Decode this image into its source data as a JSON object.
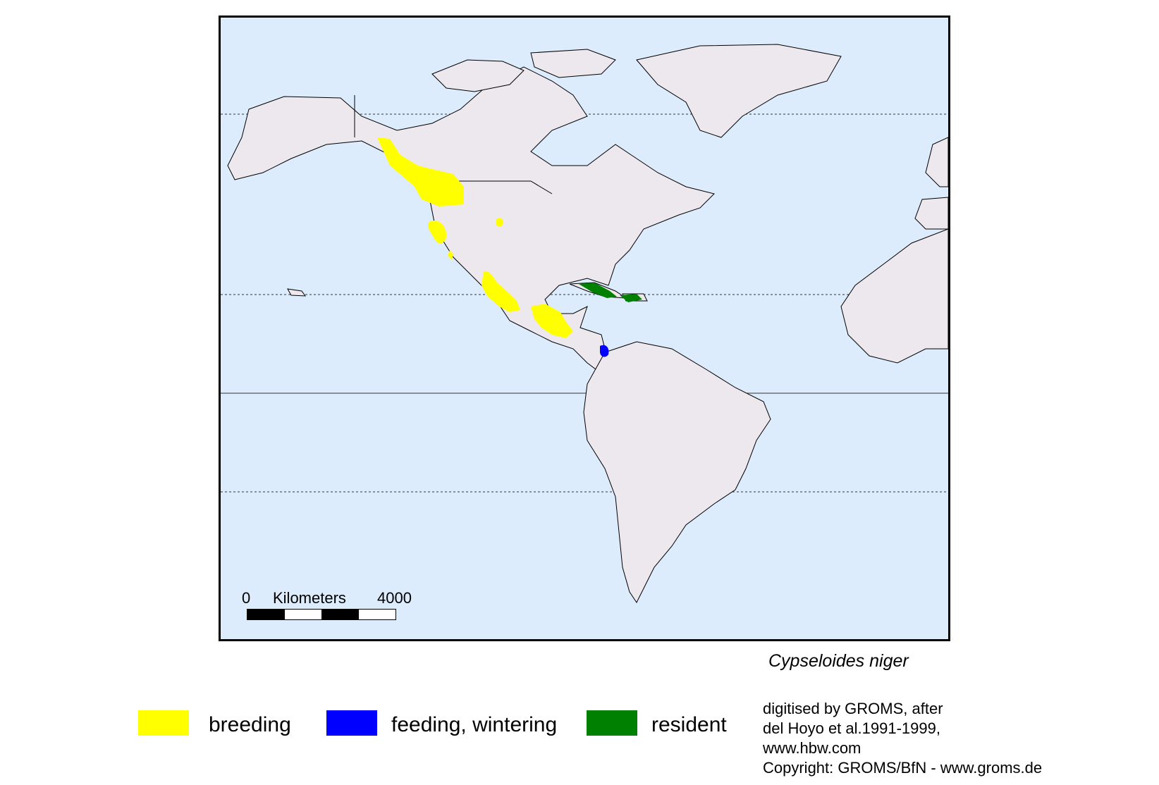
{
  "map": {
    "colors": {
      "ocean": "#dcecfc",
      "land": "#ede8ee",
      "breeding": "#ffff00",
      "feeding_wintering": "#0000ff",
      "resident": "#008000"
    },
    "scale": {
      "start": "0",
      "unit": "Kilometers",
      "end": "4000"
    }
  },
  "species_name": "Cypseloides niger",
  "legend": [
    {
      "label": "breeding",
      "color": "#ffff00"
    },
    {
      "label": "feeding, wintering",
      "color": "#0000ff"
    },
    {
      "label": "resident",
      "color": "#008000"
    }
  ],
  "credits": {
    "line1": "digitised by GROMS, after",
    "line2": "del Hoyo et al.1991-1999,",
    "line3": "www.hbw.com",
    "line4": "Copyright: GROMS/BfN - www.groms.de"
  }
}
